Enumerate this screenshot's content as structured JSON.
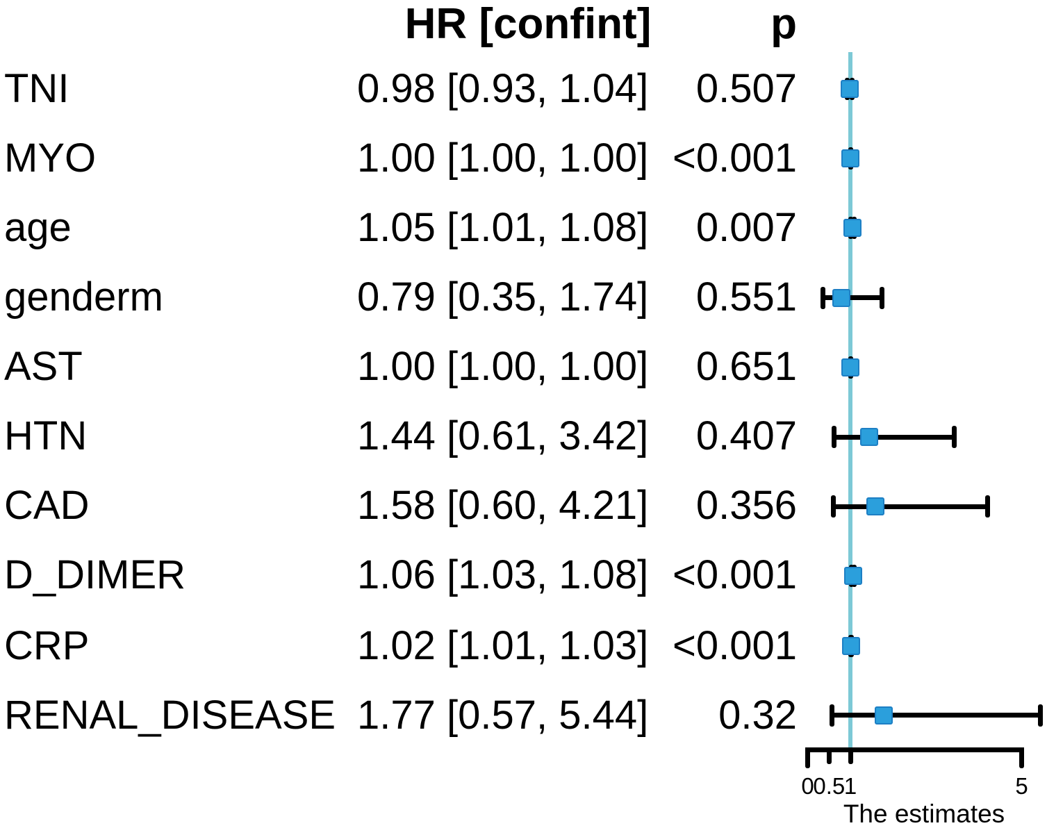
{
  "chart_data": {
    "type": "forest",
    "columns": {
      "hr_header": "HR [confint]",
      "p_header": "p"
    },
    "rows": [
      {
        "label": "TNI",
        "hr_text": "0.98 [0.93, 1.04]",
        "p": "0.507",
        "est": 0.98,
        "lo": 0.93,
        "hi": 1.04
      },
      {
        "label": "MYO",
        "hr_text": "1.00 [1.00, 1.00]",
        "p": "<0.001",
        "est": 1.0,
        "lo": 1.0,
        "hi": 1.0
      },
      {
        "label": "age",
        "hr_text": "1.05 [1.01, 1.08]",
        "p": "0.007",
        "est": 1.05,
        "lo": 1.01,
        "hi": 1.08
      },
      {
        "label": "genderm",
        "hr_text": "0.79 [0.35, 1.74]",
        "p": "0.551",
        "est": 0.79,
        "lo": 0.35,
        "hi": 1.74
      },
      {
        "label": "AST",
        "hr_text": "1.00 [1.00, 1.00]",
        "p": "0.651",
        "est": 1.0,
        "lo": 1.0,
        "hi": 1.0
      },
      {
        "label": "HTN",
        "hr_text": "1.44 [0.61, 3.42]",
        "p": "0.407",
        "est": 1.44,
        "lo": 0.61,
        "hi": 3.42
      },
      {
        "label": "CAD",
        "hr_text": "1.58 [0.60, 4.21]",
        "p": "0.356",
        "est": 1.58,
        "lo": 0.6,
        "hi": 4.21
      },
      {
        "label": "D_DIMER",
        "hr_text": "1.06 [1.03, 1.08]",
        "p": "<0.001",
        "est": 1.06,
        "lo": 1.03,
        "hi": 1.08
      },
      {
        "label": "CRP",
        "hr_text": "1.02 [1.01, 1.03]",
        "p": "<0.001",
        "est": 1.02,
        "lo": 1.01,
        "hi": 1.03
      },
      {
        "label": "RENAL_DISEASE",
        "hr_text": "1.77 [0.57, 5.44]",
        "p": "0.32",
        "est": 1.77,
        "lo": 0.57,
        "hi": 5.44
      }
    ],
    "xaxis": {
      "label": "The estimates",
      "range": [
        0,
        5
      ],
      "ticks": [
        0,
        0.5,
        1,
        5
      ],
      "tick_labels": [
        "0",
        "0.5",
        "1",
        "5"
      ],
      "reference_line": 1,
      "grid": false
    },
    "colors": {
      "marker": "#2b9fdc",
      "marker_border": "#1d7fc4",
      "reference_line": "#7dc9d6",
      "error_bar": "#000000",
      "text": "#000000",
      "background": "#ffffff"
    }
  }
}
